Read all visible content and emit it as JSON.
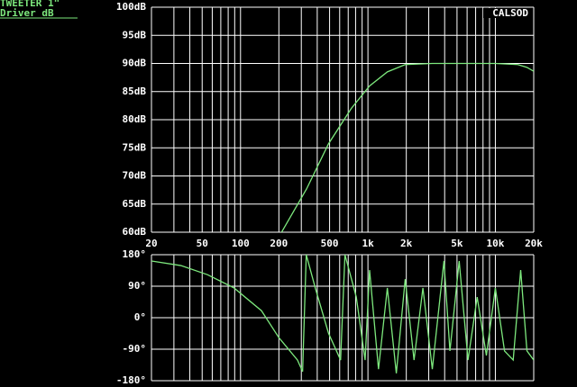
{
  "chart_data": [
    {
      "type": "line",
      "title": "TWEETER 1\"",
      "subtitle": "Driver dB",
      "annotation": "CALSOD",
      "xscale": "log",
      "xlim": [
        20,
        20000
      ],
      "ylim": [
        60,
        100
      ],
      "grid": true,
      "color": "#7de87d",
      "xticks": [
        20,
        50,
        100,
        200,
        500,
        {
          "value": 1000,
          "label": "1k"
        },
        {
          "value": 2000,
          "label": "2k"
        },
        {
          "value": 5000,
          "label": "5k"
        },
        {
          "value": 10000,
          "label": "10k"
        },
        {
          "value": 20000,
          "label": "20k"
        }
      ],
      "xminor": [
        30,
        40,
        60,
        70,
        80,
        90,
        300,
        400,
        600,
        700,
        800,
        900,
        3000,
        4000,
        6000,
        7000,
        8000,
        9000
      ],
      "yticks": [
        {
          "value": 60,
          "label": "60dB"
        },
        {
          "value": 65,
          "label": "65dB"
        },
        {
          "value": 70,
          "label": "70dB"
        },
        {
          "value": 75,
          "label": "75dB"
        },
        {
          "value": 80,
          "label": "80dB"
        },
        {
          "value": 85,
          "label": "85dB"
        },
        {
          "value": 90,
          "label": "90dB"
        },
        {
          "value": 95,
          "label": "95dB"
        },
        {
          "value": 100,
          "label": "100dB"
        }
      ],
      "x": [
        210,
        330,
        490,
        740,
        1030,
        1420,
        1960,
        3200,
        10000,
        15000,
        17700,
        20000
      ],
      "values": [
        60,
        67.7,
        75.7,
        82,
        86,
        88.5,
        89.8,
        90,
        90,
        89.8,
        89.3,
        88.6
      ]
    },
    {
      "type": "line",
      "xscale": "log",
      "xlim": [
        20,
        20000
      ],
      "ylim": [
        -180,
        180
      ],
      "grid": true,
      "color": "#7de87d",
      "yticks": [
        {
          "value": 180,
          "label": "180°"
        },
        {
          "value": 90,
          "label": "90°"
        },
        {
          "value": 0,
          "label": "0°"
        },
        {
          "value": -90,
          "label": "-90°"
        },
        {
          "value": -180,
          "label": "-180°"
        }
      ],
      "x": [
        20,
        34,
        55,
        89,
        146,
        200,
        280,
        307,
        328,
        386,
        490,
        610,
        660,
        810,
        950,
        1030,
        1210,
        1420,
        1670,
        1960,
        2300,
        2700,
        3200,
        3950,
        4400,
        5200,
        6100,
        7200,
        8500,
        10000,
        11800,
        13800,
        15800,
        17700,
        20000
      ],
      "values": [
        162,
        149,
        123,
        85,
        20,
        -57,
        -121,
        -154,
        180,
        85,
        -44,
        -121,
        180,
        59,
        -121,
        136,
        -147,
        85,
        -159,
        110,
        -121,
        85,
        -147,
        162,
        -95,
        162,
        -121,
        59,
        -108,
        85,
        -95,
        -121,
        136,
        -95,
        -121
      ]
    }
  ]
}
